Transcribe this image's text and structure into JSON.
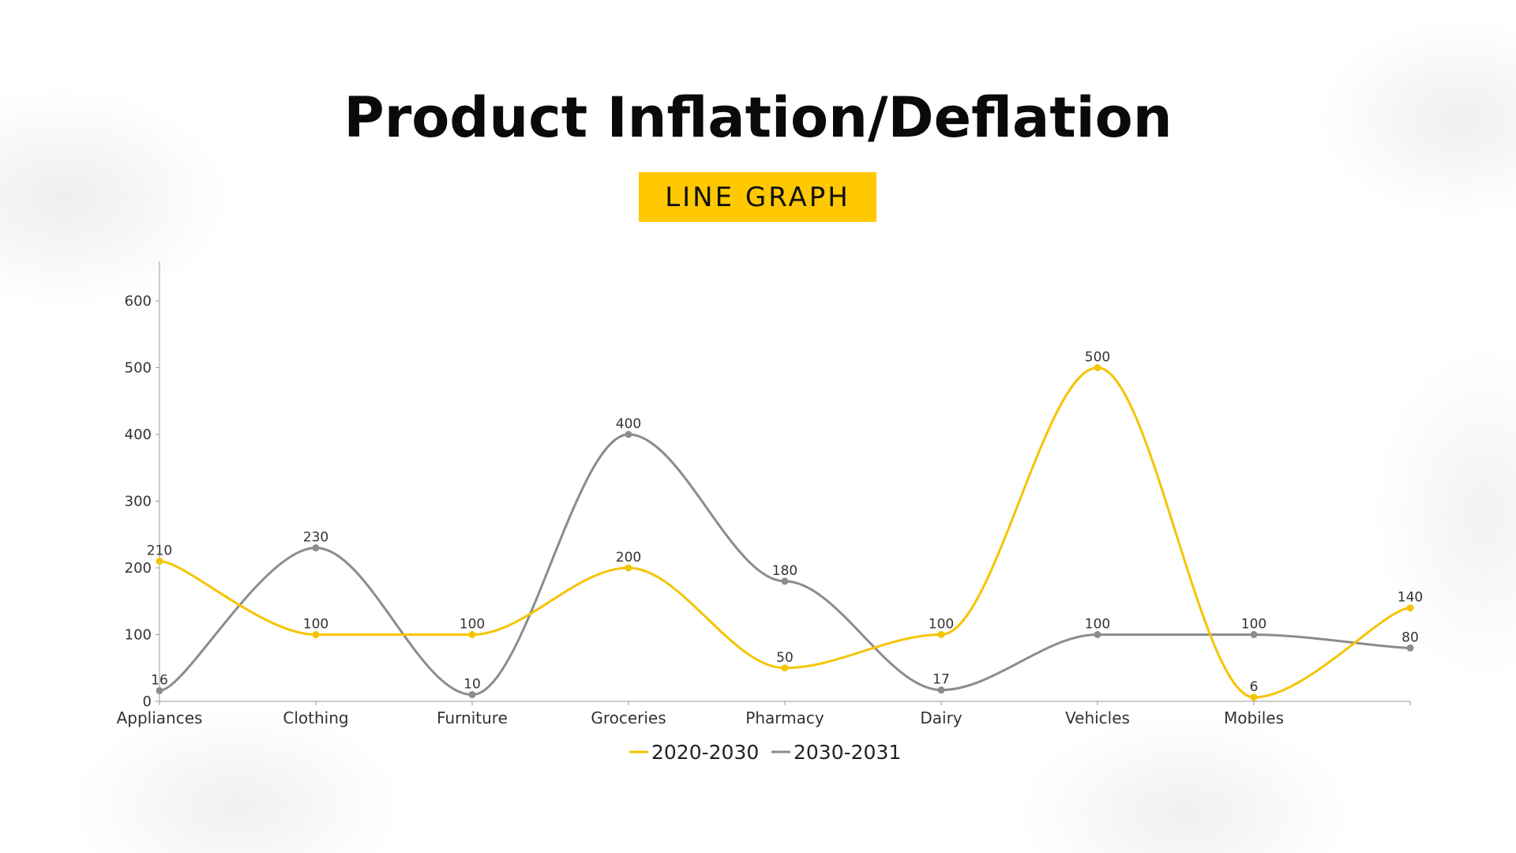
{
  "header": {
    "title": "Product Inflation/Deflation",
    "subtitle": "LINE GRAPH"
  },
  "chart_data": {
    "type": "line",
    "categories": [
      "Appliances",
      "Clothing",
      "Furniture",
      "Groceries",
      "Pharmacy",
      "Dairy",
      "Vehicles",
      "Mobiles",
      ""
    ],
    "series": [
      {
        "name": "2020-2030",
        "color": "#F5C400",
        "values": [
          210,
          100,
          100,
          200,
          50,
          100,
          500,
          6,
          140
        ]
      },
      {
        "name": "2030-2031",
        "color": "#8C8C8C",
        "values": [
          16,
          230,
          10,
          400,
          180,
          17,
          100,
          100,
          80
        ]
      }
    ],
    "yticks": [
      0,
      100,
      200,
      300,
      400,
      500,
      600
    ],
    "ylim": [
      0,
      660
    ],
    "smooth": true,
    "data_labels": true,
    "grid": false,
    "legend": "bottom"
  }
}
